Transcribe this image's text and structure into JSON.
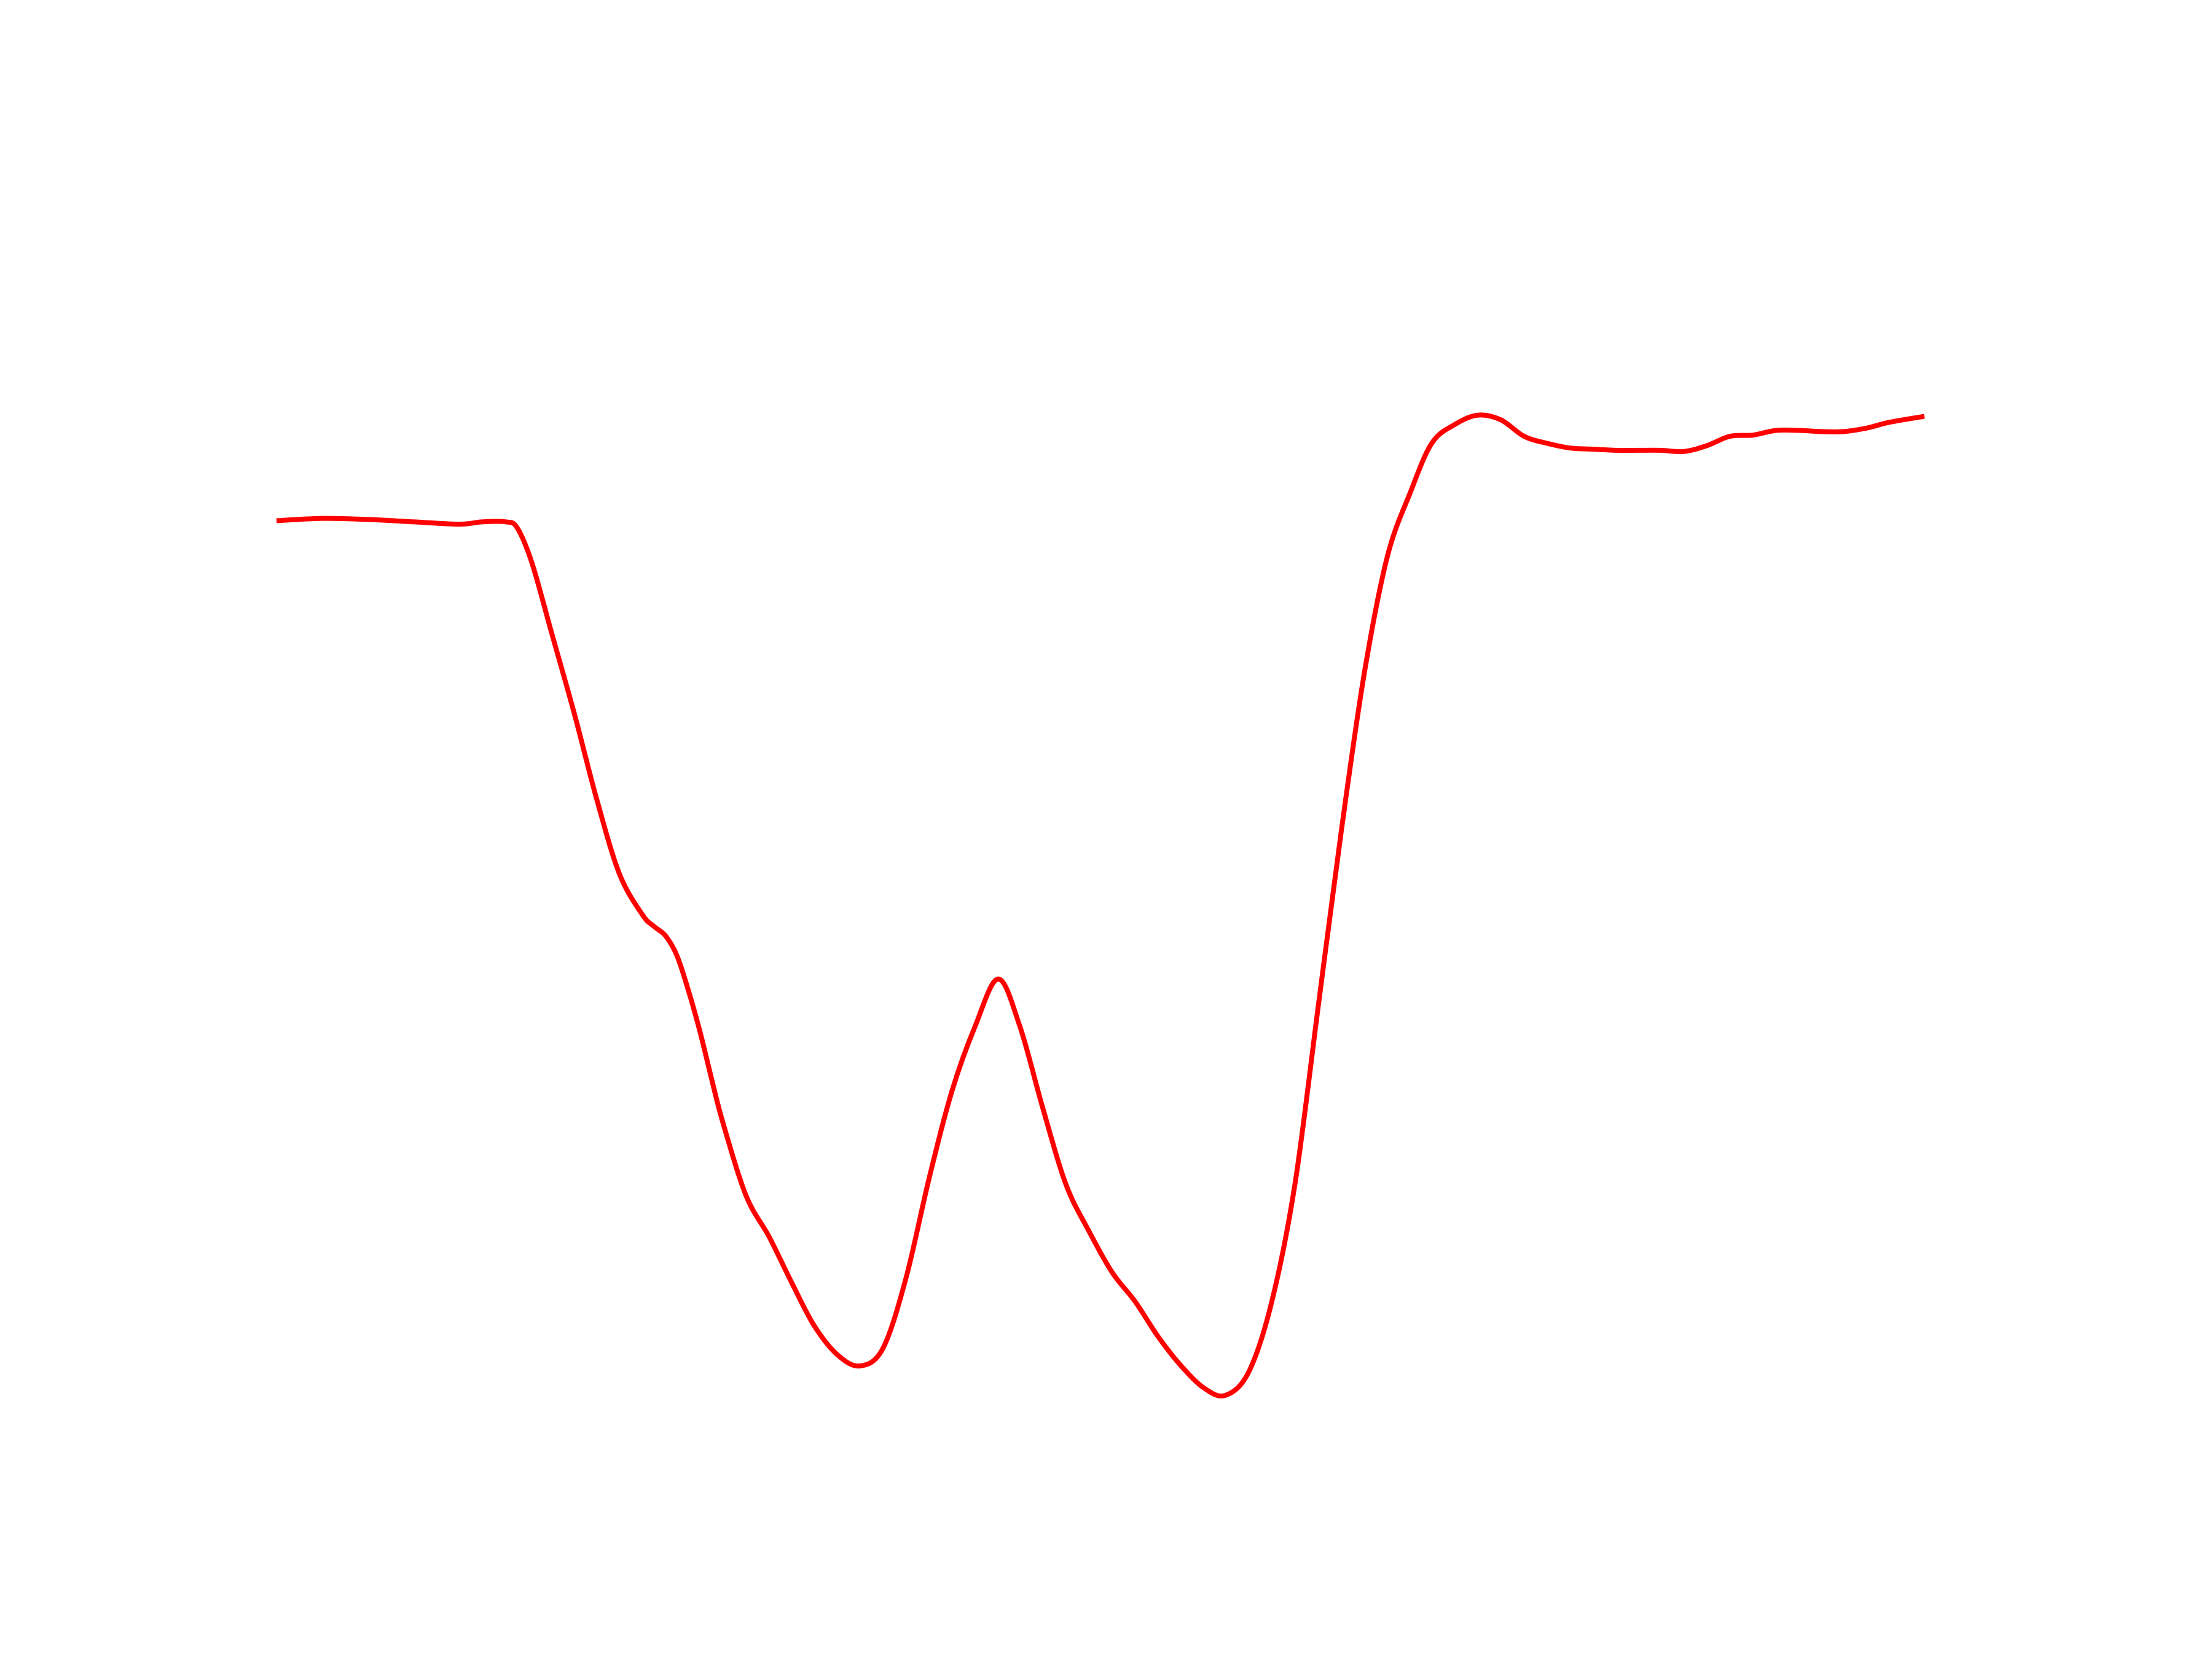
{
  "chart_data": {
    "type": "line",
    "title": "",
    "xlabel": "",
    "ylabel": "",
    "axes_visible": false,
    "grid": false,
    "legend": "none",
    "xlim": [
      0,
      1
    ],
    "ylim": [
      0,
      1
    ],
    "series": [
      {
        "color": "#ff0000",
        "x": [
          0.0,
          0.028,
          0.056,
          0.083,
          0.111,
          0.125,
          0.139,
          0.146,
          0.155,
          0.167,
          0.181,
          0.194,
          0.208,
          0.222,
          0.229,
          0.236,
          0.243,
          0.25,
          0.257,
          0.264,
          0.271,
          0.285,
          0.299,
          0.313,
          0.326,
          0.34,
          0.354,
          0.368,
          0.382,
          0.396,
          0.41,
          0.424,
          0.438,
          0.451,
          0.465,
          0.479,
          0.493,
          0.507,
          0.521,
          0.535,
          0.549,
          0.563,
          0.576,
          0.59,
          0.604,
          0.618,
          0.632,
          0.646,
          0.66,
          0.674,
          0.688,
          0.701,
          0.715,
          0.729,
          0.743,
          0.757,
          0.771,
          0.785,
          0.799,
          0.813,
          0.826,
          0.84,
          0.854,
          0.868,
          0.882,
          0.896,
          0.91,
          0.924,
          0.938,
          0.951,
          0.965,
          0.979,
          1.0
        ],
        "y": [
          0.776,
          0.778,
          0.777,
          0.775,
          0.773,
          0.775,
          0.775,
          0.77,
          0.74,
          0.68,
          0.61,
          0.54,
          0.475,
          0.44,
          0.43,
          0.422,
          0.405,
          0.375,
          0.34,
          0.3,
          0.262,
          0.2,
          0.165,
          0.125,
          0.09,
          0.065,
          0.055,
          0.07,
          0.13,
          0.215,
          0.29,
          0.345,
          0.385,
          0.345,
          0.275,
          0.21,
          0.17,
          0.135,
          0.11,
          0.08,
          0.055,
          0.036,
          0.03,
          0.05,
          0.11,
          0.21,
          0.36,
          0.51,
          0.645,
          0.745,
          0.8,
          0.842,
          0.858,
          0.866,
          0.862,
          0.848,
          0.842,
          0.838,
          0.837,
          0.836,
          0.836,
          0.836,
          0.835,
          0.84,
          0.848,
          0.849,
          0.853,
          0.853,
          0.852,
          0.852,
          0.855,
          0.86,
          0.865
        ]
      }
    ]
  }
}
